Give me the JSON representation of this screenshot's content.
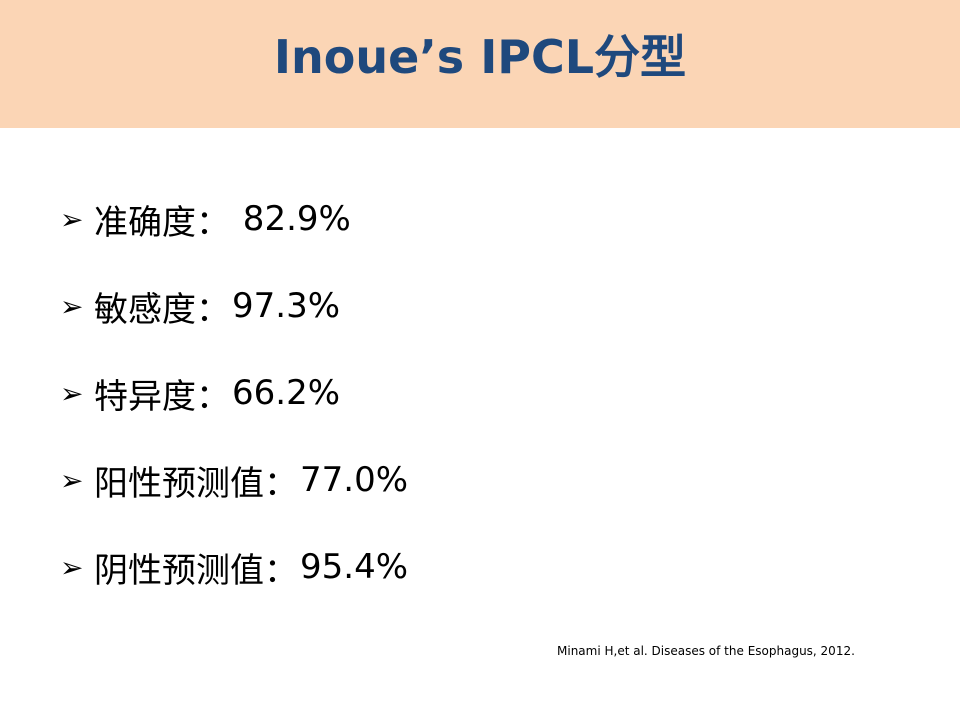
{
  "slide": {
    "title": "Inoue’s IPCL分型",
    "bullet_marker": "➢",
    "items": [
      {
        "label": "准确度：",
        "value": " 82.9%"
      },
      {
        "label": "敏感度：",
        "value": "97.3%"
      },
      {
        "label": "特异度：",
        "value": "66.2%"
      },
      {
        "label": "阳性预测值：",
        "value": "77.0%"
      },
      {
        "label": "阴性预测值：",
        "value": "95.4%"
      }
    ],
    "citation": "Minami H,et al. Diseases of the Esophagus, 2012."
  },
  "colors": {
    "title_bar": "#fbd5b5",
    "title_text": "#1f497d",
    "body_text": "#000000"
  }
}
